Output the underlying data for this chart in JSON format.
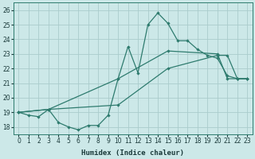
{
  "xlabel": "Humidex (Indice chaleur)",
  "bg_color": "#cce8e8",
  "grid_color": "#aacccc",
  "line_color": "#2e7b6e",
  "xlim": [
    -0.5,
    23.5
  ],
  "ylim": [
    17.5,
    26.5
  ],
  "xticks": [
    0,
    1,
    2,
    3,
    4,
    5,
    6,
    7,
    8,
    9,
    10,
    11,
    12,
    13,
    14,
    15,
    16,
    17,
    18,
    19,
    20,
    21,
    22,
    23
  ],
  "yticks": [
    18,
    19,
    20,
    21,
    22,
    23,
    24,
    25,
    26
  ],
  "line1_x": [
    0,
    1,
    2,
    3,
    4,
    5,
    6,
    7,
    8,
    9,
    10,
    11,
    12,
    13,
    14,
    15,
    16,
    17,
    18,
    19,
    20,
    21,
    22,
    23
  ],
  "line1_y": [
    19.0,
    18.8,
    18.7,
    19.2,
    18.3,
    18.0,
    17.8,
    18.1,
    18.1,
    18.8,
    21.3,
    23.5,
    21.7,
    25.0,
    25.8,
    25.1,
    23.9,
    23.9,
    23.3,
    22.9,
    22.7,
    21.5,
    21.3,
    21.3
  ],
  "line2_x": [
    0,
    3,
    10,
    15,
    20,
    21,
    22,
    23
  ],
  "line2_y": [
    19.0,
    19.2,
    21.3,
    23.2,
    23.0,
    21.3,
    21.3,
    21.3
  ],
  "line3_x": [
    0,
    3,
    10,
    15,
    20,
    21,
    22,
    23
  ],
  "line3_y": [
    19.0,
    19.2,
    19.5,
    22.0,
    22.9,
    22.9,
    21.3,
    21.3
  ],
  "xlabel_fontsize": 6.5,
  "tick_fontsize": 5.5
}
